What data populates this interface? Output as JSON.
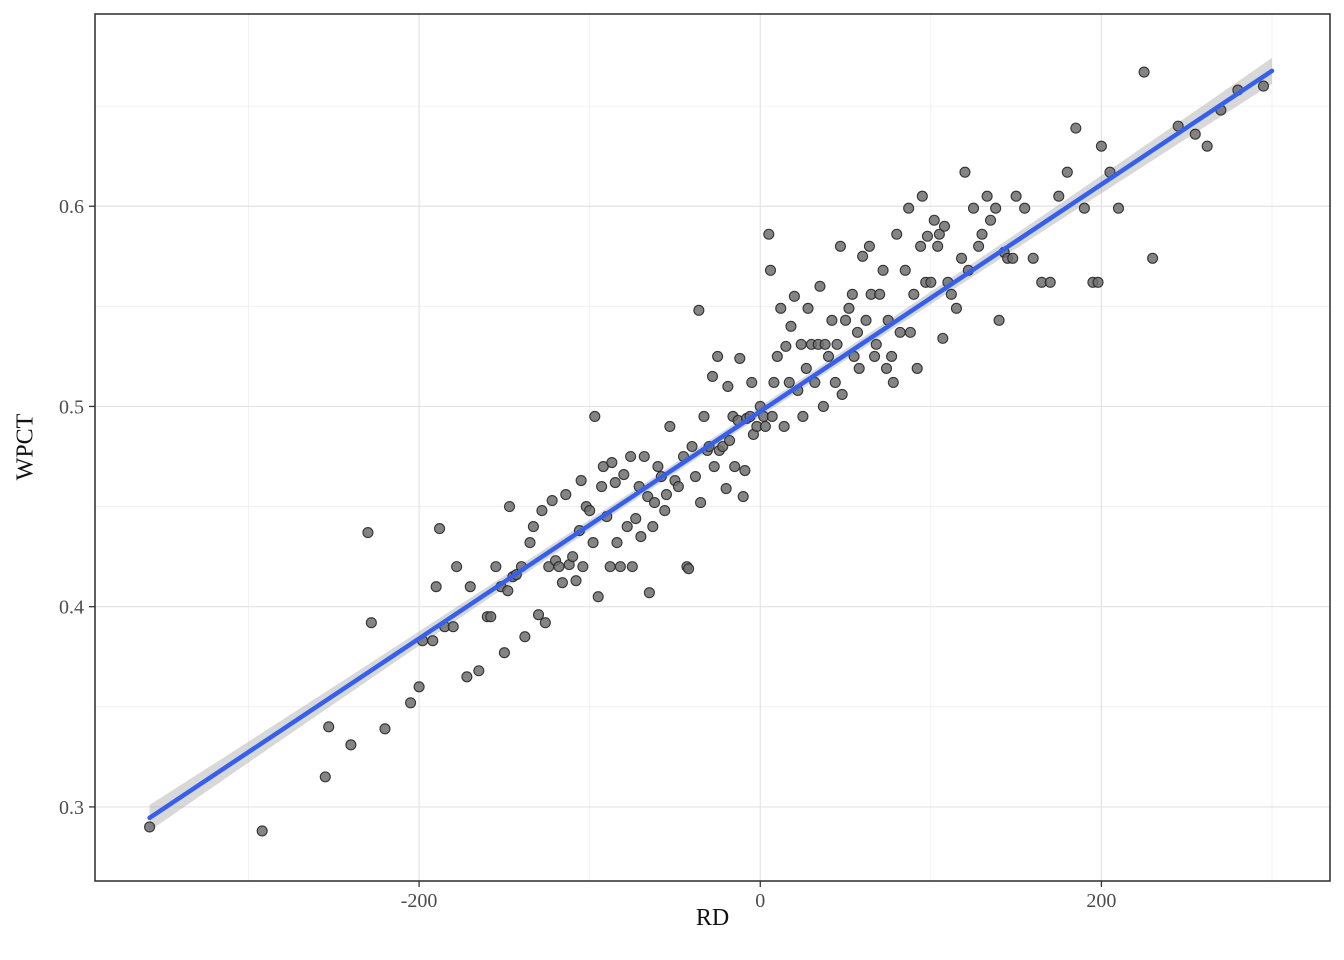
{
  "figure": {
    "background": "#FFFFFF"
  },
  "chart_data": {
    "type": "scatter",
    "title": "",
    "xlabel": "RD",
    "ylabel": "WPCT",
    "xlim": [
      -390,
      334
    ],
    "ylim": [
      0.263,
      0.696
    ],
    "x_ticks": [
      -200,
      0,
      200
    ],
    "x_tick_labels": [
      "-200",
      "0",
      "200"
    ],
    "y_ticks": [
      0.3,
      0.4,
      0.5,
      0.6
    ],
    "y_tick_labels": [
      "0.3",
      "0.4",
      "0.5",
      "0.6"
    ],
    "x_minor_ticks": [
      -300,
      -100,
      100,
      300
    ],
    "y_minor_ticks": [
      0.35,
      0.45,
      0.55,
      0.65
    ],
    "grid": true,
    "legend": "none",
    "panel_background": "#FFFFFF",
    "panel_border_color": "#2B2B2B",
    "grid_major_color": "#E3E3E3",
    "grid_minor_color": "#EFEFEF",
    "tick_color": "#333333",
    "tick_label_color": "#4D4D4D",
    "point_fill": "#6F6F6F",
    "point_stroke": "#262626",
    "point_opacity": 0.85,
    "smooth_line_color": "#3660EB",
    "ribbon_color": "#9E9E9E",
    "ribbon_opacity": 0.4,
    "regression": {
      "intercept": 0.4975,
      "slope": 0.000567,
      "x_start": -358,
      "x_end": 300,
      "center_halfwidth": 0.0025,
      "edge_halfwidth": 0.0065
    },
    "points": [
      [
        -358,
        0.29
      ],
      [
        -292,
        0.288
      ],
      [
        -255,
        0.315
      ],
      [
        -253,
        0.34
      ],
      [
        -240,
        0.331
      ],
      [
        -230,
        0.437
      ],
      [
        -228,
        0.392
      ],
      [
        -220,
        0.339
      ],
      [
        -205,
        0.352
      ],
      [
        -200,
        0.36
      ],
      [
        -198,
        0.383
      ],
      [
        -192,
        0.383
      ],
      [
        -190,
        0.41
      ],
      [
        -188,
        0.439
      ],
      [
        -185,
        0.39
      ],
      [
        -180,
        0.39
      ],
      [
        -178,
        0.42
      ],
      [
        -172,
        0.365
      ],
      [
        -170,
        0.41
      ],
      [
        -165,
        0.368
      ],
      [
        -160,
        0.395
      ],
      [
        -158,
        0.395
      ],
      [
        -155,
        0.42
      ],
      [
        -152,
        0.41
      ],
      [
        -150,
        0.377
      ],
      [
        -148,
        0.408
      ],
      [
        -147,
        0.45
      ],
      [
        -145,
        0.415
      ],
      [
        -143,
        0.416
      ],
      [
        -140,
        0.42
      ],
      [
        -138,
        0.385
      ],
      [
        -135,
        0.432
      ],
      [
        -133,
        0.44
      ],
      [
        -130,
        0.396
      ],
      [
        -128,
        0.448
      ],
      [
        -126,
        0.392
      ],
      [
        -124,
        0.42
      ],
      [
        -122,
        0.453
      ],
      [
        -120,
        0.423
      ],
      [
        -118,
        0.42
      ],
      [
        -116,
        0.412
      ],
      [
        -114,
        0.456
      ],
      [
        -112,
        0.421
      ],
      [
        -110,
        0.425
      ],
      [
        -108,
        0.413
      ],
      [
        -106,
        0.438
      ],
      [
        -105,
        0.463
      ],
      [
        -104,
        0.42
      ],
      [
        -102,
        0.45
      ],
      [
        -100,
        0.448
      ],
      [
        -98,
        0.432
      ],
      [
        -97,
        0.495
      ],
      [
        -95,
        0.405
      ],
      [
        -93,
        0.46
      ],
      [
        -92,
        0.47
      ],
      [
        -90,
        0.445
      ],
      [
        -88,
        0.42
      ],
      [
        -87,
        0.472
      ],
      [
        -85,
        0.462
      ],
      [
        -84,
        0.432
      ],
      [
        -82,
        0.42
      ],
      [
        -80,
        0.466
      ],
      [
        -78,
        0.44
      ],
      [
        -76,
        0.475
      ],
      [
        -75,
        0.42
      ],
      [
        -73,
        0.444
      ],
      [
        -71,
        0.46
      ],
      [
        -70,
        0.435
      ],
      [
        -68,
        0.475
      ],
      [
        -66,
        0.455
      ],
      [
        -65,
        0.407
      ],
      [
        -63,
        0.44
      ],
      [
        -62,
        0.452
      ],
      [
        -60,
        0.47
      ],
      [
        -58,
        0.465
      ],
      [
        -56,
        0.448
      ],
      [
        -55,
        0.456
      ],
      [
        -53,
        0.49
      ],
      [
        -50,
        0.463
      ],
      [
        -48,
        0.46
      ],
      [
        -45,
        0.475
      ],
      [
        -43,
        0.42
      ],
      [
        -42,
        0.419
      ],
      [
        -40,
        0.48
      ],
      [
        -38,
        0.465
      ],
      [
        -36,
        0.548
      ],
      [
        -35,
        0.452
      ],
      [
        -33,
        0.495
      ],
      [
        -31,
        0.478
      ],
      [
        -30,
        0.48
      ],
      [
        -28,
        0.515
      ],
      [
        -27,
        0.47
      ],
      [
        -25,
        0.525
      ],
      [
        -24,
        0.478
      ],
      [
        -22,
        0.48
      ],
      [
        -20,
        0.459
      ],
      [
        -19,
        0.51
      ],
      [
        -18,
        0.483
      ],
      [
        -16,
        0.495
      ],
      [
        -15,
        0.47
      ],
      [
        -13,
        0.493
      ],
      [
        -12,
        0.524
      ],
      [
        -10,
        0.455
      ],
      [
        -9,
        0.468
      ],
      [
        -8,
        0.494
      ],
      [
        -6,
        0.495
      ],
      [
        -5,
        0.512
      ],
      [
        -4,
        0.486
      ],
      [
        -2,
        0.49
      ],
      [
        0,
        0.5
      ],
      [
        2,
        0.495
      ],
      [
        3,
        0.49
      ],
      [
        5,
        0.586
      ],
      [
        6,
        0.568
      ],
      [
        7,
        0.495
      ],
      [
        8,
        0.512
      ],
      [
        10,
        0.525
      ],
      [
        12,
        0.549
      ],
      [
        14,
        0.49
      ],
      [
        15,
        0.53
      ],
      [
        17,
        0.512
      ],
      [
        18,
        0.54
      ],
      [
        20,
        0.555
      ],
      [
        22,
        0.508
      ],
      [
        24,
        0.531
      ],
      [
        25,
        0.495
      ],
      [
        27,
        0.519
      ],
      [
        28,
        0.549
      ],
      [
        30,
        0.531
      ],
      [
        32,
        0.512
      ],
      [
        34,
        0.531
      ],
      [
        35,
        0.56
      ],
      [
        37,
        0.5
      ],
      [
        38,
        0.531
      ],
      [
        40,
        0.525
      ],
      [
        42,
        0.543
      ],
      [
        44,
        0.512
      ],
      [
        45,
        0.531
      ],
      [
        47,
        0.58
      ],
      [
        48,
        0.506
      ],
      [
        50,
        0.543
      ],
      [
        52,
        0.549
      ],
      [
        54,
        0.556
      ],
      [
        55,
        0.525
      ],
      [
        57,
        0.537
      ],
      [
        58,
        0.519
      ],
      [
        60,
        0.575
      ],
      [
        62,
        0.543
      ],
      [
        64,
        0.58
      ],
      [
        65,
        0.556
      ],
      [
        67,
        0.525
      ],
      [
        68,
        0.531
      ],
      [
        70,
        0.556
      ],
      [
        72,
        0.568
      ],
      [
        74,
        0.519
      ],
      [
        75,
        0.543
      ],
      [
        77,
        0.525
      ],
      [
        78,
        0.512
      ],
      [
        80,
        0.586
      ],
      [
        82,
        0.537
      ],
      [
        85,
        0.568
      ],
      [
        87,
        0.599
      ],
      [
        88,
        0.537
      ],
      [
        90,
        0.556
      ],
      [
        92,
        0.519
      ],
      [
        94,
        0.58
      ],
      [
        95,
        0.605
      ],
      [
        97,
        0.562
      ],
      [
        98,
        0.585
      ],
      [
        100,
        0.562
      ],
      [
        102,
        0.593
      ],
      [
        104,
        0.58
      ],
      [
        105,
        0.586
      ],
      [
        107,
        0.534
      ],
      [
        108,
        0.59
      ],
      [
        110,
        0.562
      ],
      [
        112,
        0.556
      ],
      [
        115,
        0.549
      ],
      [
        118,
        0.574
      ],
      [
        120,
        0.617
      ],
      [
        122,
        0.568
      ],
      [
        125,
        0.599
      ],
      [
        128,
        0.58
      ],
      [
        130,
        0.586
      ],
      [
        133,
        0.605
      ],
      [
        135,
        0.593
      ],
      [
        138,
        0.599
      ],
      [
        140,
        0.543
      ],
      [
        143,
        0.577
      ],
      [
        145,
        0.574
      ],
      [
        148,
        0.574
      ],
      [
        150,
        0.605
      ],
      [
        155,
        0.599
      ],
      [
        160,
        0.574
      ],
      [
        165,
        0.562
      ],
      [
        170,
        0.562
      ],
      [
        175,
        0.605
      ],
      [
        180,
        0.617
      ],
      [
        185,
        0.639
      ],
      [
        190,
        0.599
      ],
      [
        195,
        0.562
      ],
      [
        198,
        0.562
      ],
      [
        200,
        0.63
      ],
      [
        205,
        0.617
      ],
      [
        210,
        0.599
      ],
      [
        225,
        0.667
      ],
      [
        230,
        0.574
      ],
      [
        245,
        0.64
      ],
      [
        255,
        0.636
      ],
      [
        262,
        0.63
      ],
      [
        270,
        0.648
      ],
      [
        280,
        0.658
      ],
      [
        295,
        0.66
      ]
    ]
  }
}
